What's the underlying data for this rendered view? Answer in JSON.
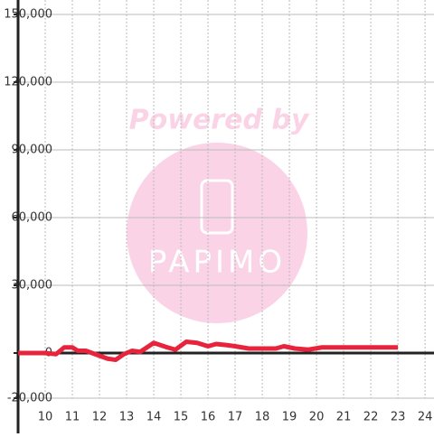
{
  "chart_data": {
    "type": "line",
    "watermark": {
      "title": "Powered by",
      "brand": "PAPIMO"
    },
    "x": [
      9,
      9.5,
      10,
      10.4,
      10.7,
      11,
      11.2,
      11.5,
      12,
      12.3,
      12.6,
      12.9,
      13.2,
      13.5,
      14,
      14.5,
      14.8,
      15.2,
      15.6,
      16,
      16.3,
      16.7,
      17,
      17.5,
      18,
      18.5,
      18.8,
      19.2,
      19.7,
      20.2,
      20.5,
      21,
      21.5,
      22,
      22.5,
      23
    ],
    "series": [
      {
        "color": "#e8243c",
        "values": [
          0,
          0,
          0,
          -500,
          2500,
          2500,
          1000,
          1000,
          -1200,
          -2500,
          -3000,
          -500,
          1000,
          500,
          4500,
          2500,
          1500,
          5000,
          4500,
          3000,
          4000,
          3500,
          3000,
          2000,
          2000,
          2000,
          3000,
          2000,
          1500,
          2500,
          2500,
          2500,
          2500,
          2500,
          2500,
          2500
        ]
      }
    ],
    "xlim": [
      9,
      24.33
    ],
    "xticks": [
      10,
      11,
      12,
      13,
      14,
      15,
      16,
      17,
      18,
      19,
      20,
      21,
      22,
      23,
      24
    ],
    "ylim": [
      -20000,
      150000
    ],
    "yticks": [
      {
        "value": -20000,
        "label": "-20,000"
      },
      0,
      {
        "value": 30000,
        "label": "30,000"
      },
      {
        "value": 60000,
        "label": "60,000"
      },
      {
        "value": 90000,
        "label": "90,000"
      },
      {
        "value": 120000,
        "label": "120,000"
      },
      {
        "value": 150000,
        "label": "150,000"
      }
    ],
    "grid": true
  }
}
